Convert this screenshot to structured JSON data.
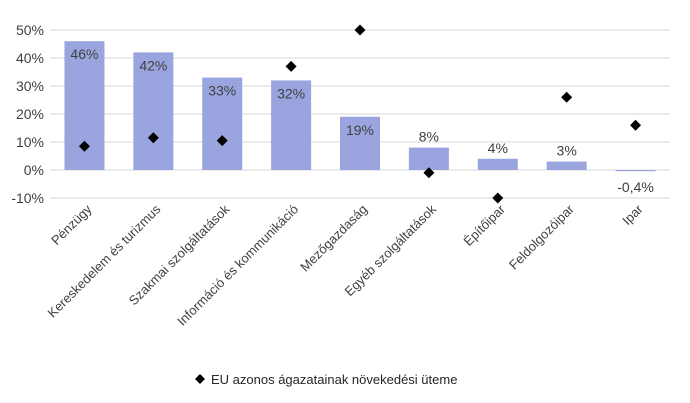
{
  "colors": {
    "bar": "#9aa5e0",
    "marker": "#000000",
    "grid": "#d9d9d9",
    "text": "#404040"
  },
  "chart_data": {
    "type": "bar",
    "categories": [
      "Pénzügy",
      "Kereskedelem és turizmus",
      "Szakmai szolgáltatások",
      "Információ és kommunikáció",
      "Mezőgazdaság",
      "Egyéb szolgáltatások",
      "Építőipar",
      "Feldolgozóipar",
      "Ipar"
    ],
    "series": [
      {
        "kind": "bar",
        "values": [
          46,
          42,
          33,
          32,
          19,
          8,
          4,
          3,
          -0.4
        ],
        "data_labels": [
          "46%",
          "42%",
          "33%",
          "32%",
          "19%",
          "8%",
          "4%",
          "3%",
          "-0,4%"
        ]
      },
      {
        "kind": "marker",
        "name": "EU azonos ágazatainak növekedési üteme",
        "marker": "diamond",
        "values": [
          8.5,
          11.5,
          10.5,
          37,
          50,
          -1,
          -10,
          26,
          16
        ]
      }
    ],
    "y_ticks": [
      "50%",
      "40%",
      "30%",
      "20%",
      "10%",
      "0%",
      "-10%"
    ],
    "ylim": [
      -10,
      50
    ],
    "grid": true,
    "legend_position": "bottom"
  }
}
